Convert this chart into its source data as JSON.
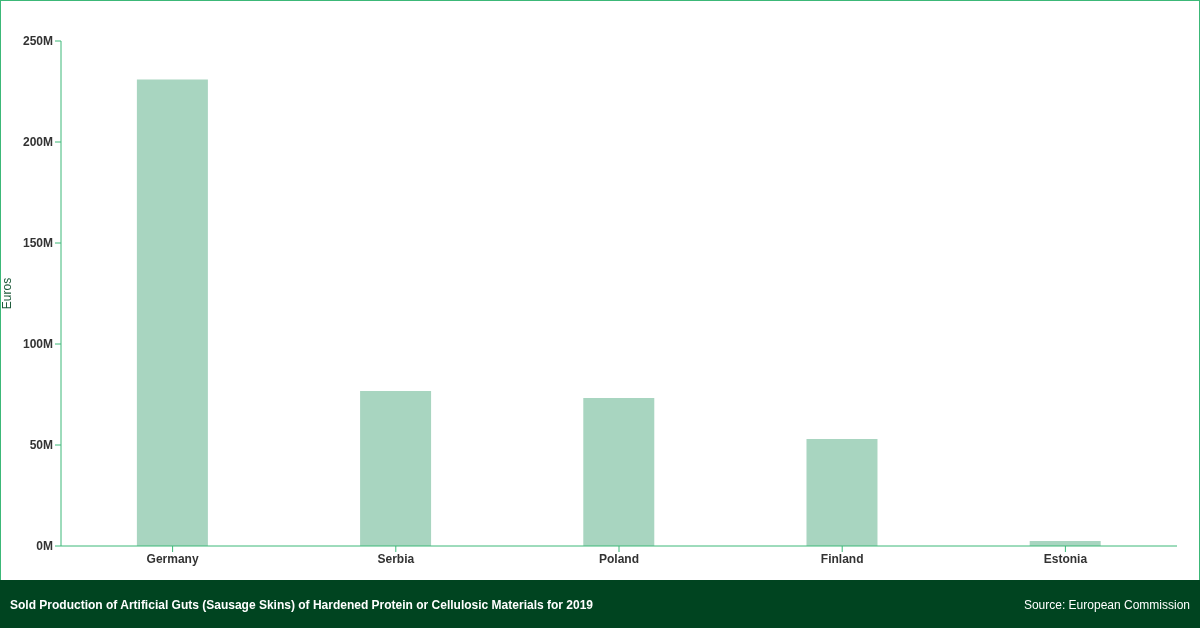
{
  "chart_data": {
    "type": "bar",
    "title": "Sold Production of Artificial Guts (Sausage Skins) of Hardened Protein or Cellulosic Materials for 2019",
    "ylabel": "Euros",
    "categories": [
      "Germany",
      "Serbia",
      "Poland",
      "Finland",
      "Estonia"
    ],
    "values": [
      231,
      76.7,
      73.3,
      53,
      2.5
    ],
    "color": "#a8d5c0",
    "ylim": [
      0,
      250
    ],
    "yticks": [
      {
        "value": 0,
        "label": "0M"
      },
      {
        "value": 50,
        "label": "50M"
      },
      {
        "value": 100,
        "label": "100M"
      },
      {
        "value": 150,
        "label": "150M"
      },
      {
        "value": 200,
        "label": "200M"
      },
      {
        "value": 250,
        "label": "250M"
      }
    ],
    "grid": false,
    "legend": false,
    "annotations": [
      "Source: European Commission"
    ]
  }
}
